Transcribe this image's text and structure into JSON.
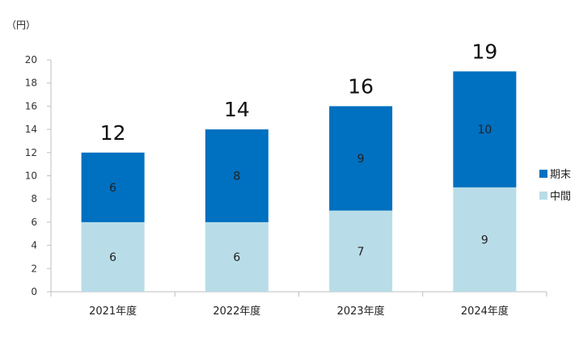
{
  "chart_data": {
    "type": "bar",
    "stacked": true,
    "title": "",
    "unit_label": "（円）",
    "xlabel": "",
    "ylabel": "（円）",
    "categories": [
      "2021年度",
      "2022年度",
      "2023年度",
      "2024年度"
    ],
    "series": [
      {
        "name": "中間",
        "color": "#b8dde8",
        "values": [
          6,
          6,
          7,
          9
        ]
      },
      {
        "name": "期末",
        "color": "#0070c0",
        "values": [
          6,
          8,
          9,
          10
        ]
      }
    ],
    "totals": [
      12,
      14,
      16,
      19
    ],
    "ylim": [
      0,
      20
    ],
    "yticks": [
      0,
      2,
      4,
      6,
      8,
      10,
      12,
      14,
      16,
      18,
      20
    ],
    "legend_position": "right",
    "legend_order": [
      "期末",
      "中間"
    ],
    "grid": false
  }
}
